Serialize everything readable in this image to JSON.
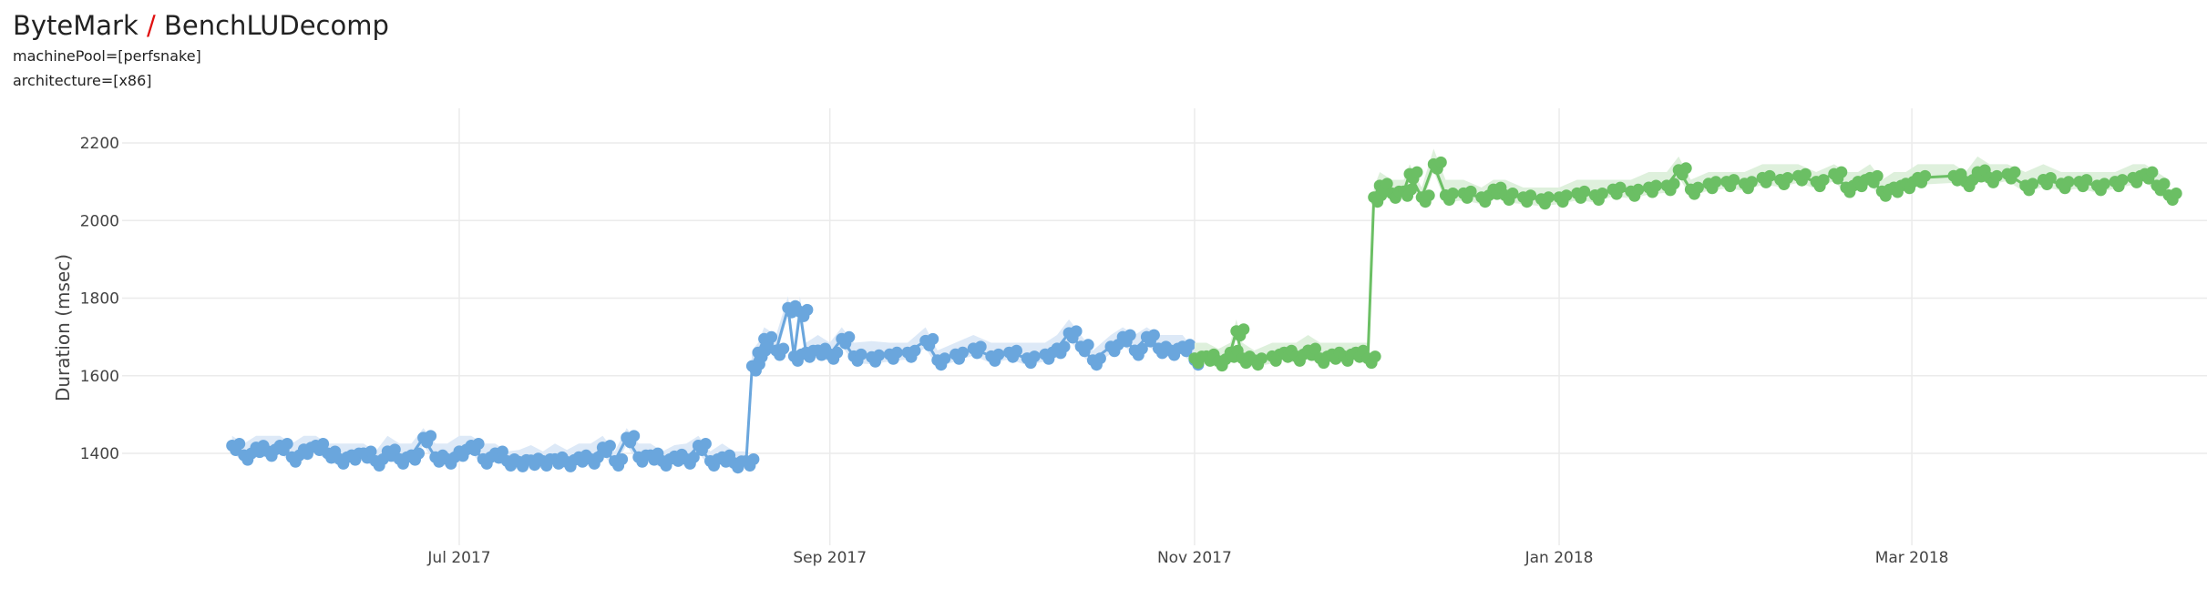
{
  "header": {
    "project": "ByteMark",
    "separator": "/",
    "benchmark": "BenchLUDecomp",
    "filters": [
      "machinePool=[perfsnake]",
      "architecture=[x86]"
    ]
  },
  "colors": {
    "series_a": "#6aa6dd",
    "series_a_band": "#dde9f7",
    "series_b": "#6bbf64",
    "series_b_band": "#def0dc",
    "grid": "#ebebeb",
    "separator": "#e01010"
  },
  "chart_data": {
    "type": "line",
    "title": "ByteMark / BenchLUDecomp",
    "xlabel": "",
    "ylabel": "Duration (msec)",
    "ylim": [
      1320,
      2270
    ],
    "yticks": [
      1400,
      1600,
      1800,
      2000,
      2200
    ],
    "xticks": [
      {
        "date": "2017-07-01",
        "label": "Jul 2017"
      },
      {
        "date": "2017-09-01",
        "label": "Sep 2017"
      },
      {
        "date": "2017-11-01",
        "label": "Nov 2017"
      },
      {
        "date": "2018-01-01",
        "label": "Jan 2018"
      },
      {
        "date": "2018-03-01",
        "label": "Mar 2018"
      }
    ],
    "grid": true,
    "legend": "none",
    "series": [
      {
        "name": "blue-series",
        "color": "#6aa6dd",
        "points": [
          [
            "2017-05-24",
            1420
          ],
          [
            "2017-05-26",
            1395
          ],
          [
            "2017-05-28",
            1415
          ],
          [
            "2017-05-30",
            1405
          ],
          [
            "2017-06-01",
            1420
          ],
          [
            "2017-06-03",
            1390
          ],
          [
            "2017-06-05",
            1410
          ],
          [
            "2017-06-07",
            1420
          ],
          [
            "2017-06-09",
            1400
          ],
          [
            "2017-06-11",
            1385
          ],
          [
            "2017-06-13",
            1395
          ],
          [
            "2017-06-15",
            1400
          ],
          [
            "2017-06-17",
            1380
          ],
          [
            "2017-06-19",
            1405
          ],
          [
            "2017-06-21",
            1385
          ],
          [
            "2017-06-23",
            1395
          ],
          [
            "2017-06-25",
            1440
          ],
          [
            "2017-06-27",
            1390
          ],
          [
            "2017-06-29",
            1385
          ],
          [
            "2017-07-01",
            1405
          ],
          [
            "2017-07-03",
            1420
          ],
          [
            "2017-07-05",
            1385
          ],
          [
            "2017-07-07",
            1400
          ],
          [
            "2017-07-09",
            1380
          ],
          [
            "2017-07-11",
            1378
          ],
          [
            "2017-07-13",
            1382
          ],
          [
            "2017-07-15",
            1380
          ],
          [
            "2017-07-17",
            1385
          ],
          [
            "2017-07-19",
            1378
          ],
          [
            "2017-07-21",
            1390
          ],
          [
            "2017-07-23",
            1385
          ],
          [
            "2017-07-25",
            1415
          ],
          [
            "2017-07-27",
            1380
          ],
          [
            "2017-07-29",
            1440
          ],
          [
            "2017-07-31",
            1390
          ],
          [
            "2017-08-02",
            1395
          ],
          [
            "2017-08-04",
            1380
          ],
          [
            "2017-08-06",
            1392
          ],
          [
            "2017-08-08",
            1385
          ],
          [
            "2017-08-10",
            1420
          ],
          [
            "2017-08-12",
            1380
          ],
          [
            "2017-08-14",
            1390
          ],
          [
            "2017-08-16",
            1375
          ],
          [
            "2017-08-18",
            1380
          ],
          [
            "2017-08-19",
            1625
          ],
          [
            "2017-08-20",
            1660
          ],
          [
            "2017-08-21",
            1695
          ],
          [
            "2017-08-23",
            1665
          ],
          [
            "2017-08-25",
            1775
          ],
          [
            "2017-08-26",
            1650
          ],
          [
            "2017-08-27",
            1765
          ],
          [
            "2017-08-28",
            1660
          ],
          [
            "2017-08-30",
            1665
          ],
          [
            "2017-09-01",
            1655
          ],
          [
            "2017-09-03",
            1695
          ],
          [
            "2017-09-05",
            1650
          ],
          [
            "2017-09-08",
            1648
          ],
          [
            "2017-09-11",
            1655
          ],
          [
            "2017-09-14",
            1660
          ],
          [
            "2017-09-17",
            1690
          ],
          [
            "2017-09-19",
            1640
          ],
          [
            "2017-09-22",
            1655
          ],
          [
            "2017-09-25",
            1670
          ],
          [
            "2017-09-28",
            1650
          ],
          [
            "2017-10-01",
            1660
          ],
          [
            "2017-10-04",
            1645
          ],
          [
            "2017-10-07",
            1655
          ],
          [
            "2017-10-09",
            1670
          ],
          [
            "2017-10-11",
            1710
          ],
          [
            "2017-10-13",
            1675
          ],
          [
            "2017-10-15",
            1640
          ],
          [
            "2017-10-18",
            1675
          ],
          [
            "2017-10-20",
            1700
          ],
          [
            "2017-10-22",
            1665
          ],
          [
            "2017-10-24",
            1700
          ],
          [
            "2017-10-26",
            1670
          ],
          [
            "2017-10-28",
            1665
          ],
          [
            "2017-10-30",
            1675
          ],
          [
            "2017-11-01",
            1640
          ]
        ]
      },
      {
        "name": "green-series",
        "color": "#6bbf64",
        "points": [
          [
            "2017-11-01",
            1645
          ],
          [
            "2017-11-03",
            1650
          ],
          [
            "2017-11-05",
            1638
          ],
          [
            "2017-11-07",
            1660
          ],
          [
            "2017-11-08",
            1715
          ],
          [
            "2017-11-09",
            1645
          ],
          [
            "2017-11-11",
            1640
          ],
          [
            "2017-11-14",
            1650
          ],
          [
            "2017-11-16",
            1660
          ],
          [
            "2017-11-18",
            1650
          ],
          [
            "2017-11-20",
            1665
          ],
          [
            "2017-11-22",
            1645
          ],
          [
            "2017-11-24",
            1655
          ],
          [
            "2017-11-26",
            1650
          ],
          [
            "2017-11-28",
            1660
          ],
          [
            "2017-11-30",
            1645
          ],
          [
            "2017-12-01",
            2060
          ],
          [
            "2017-12-02",
            2090
          ],
          [
            "2017-12-04",
            2070
          ],
          [
            "2017-12-06",
            2075
          ],
          [
            "2017-12-07",
            2120
          ],
          [
            "2017-12-09",
            2060
          ],
          [
            "2017-12-11",
            2145
          ],
          [
            "2017-12-13",
            2065
          ],
          [
            "2017-12-16",
            2070
          ],
          [
            "2017-12-19",
            2060
          ],
          [
            "2017-12-21",
            2080
          ],
          [
            "2017-12-23",
            2065
          ],
          [
            "2017-12-26",
            2060
          ],
          [
            "2017-12-29",
            2055
          ],
          [
            "2018-01-01",
            2060
          ],
          [
            "2018-01-04",
            2070
          ],
          [
            "2018-01-07",
            2065
          ],
          [
            "2018-01-10",
            2080
          ],
          [
            "2018-01-13",
            2075
          ],
          [
            "2018-01-16",
            2085
          ],
          [
            "2018-01-19",
            2090
          ],
          [
            "2018-01-21",
            2130
          ],
          [
            "2018-01-23",
            2080
          ],
          [
            "2018-01-26",
            2095
          ],
          [
            "2018-01-29",
            2100
          ],
          [
            "2018-02-01",
            2095
          ],
          [
            "2018-02-04",
            2110
          ],
          [
            "2018-02-07",
            2105
          ],
          [
            "2018-02-10",
            2115
          ],
          [
            "2018-02-13",
            2100
          ],
          [
            "2018-02-16",
            2120
          ],
          [
            "2018-02-18",
            2085
          ],
          [
            "2018-02-20",
            2100
          ],
          [
            "2018-02-22",
            2110
          ],
          [
            "2018-02-24",
            2075
          ],
          [
            "2018-02-26",
            2085
          ],
          [
            "2018-02-28",
            2095
          ],
          [
            "2018-03-02",
            2110
          ],
          [
            "2018-03-08",
            2115
          ],
          [
            "2018-03-10",
            2100
          ],
          [
            "2018-03-12",
            2125
          ],
          [
            "2018-03-14",
            2110
          ],
          [
            "2018-03-17",
            2120
          ],
          [
            "2018-03-20",
            2090
          ],
          [
            "2018-03-23",
            2105
          ],
          [
            "2018-03-26",
            2095
          ],
          [
            "2018-03-29",
            2100
          ],
          [
            "2018-04-01",
            2090
          ],
          [
            "2018-04-04",
            2100
          ],
          [
            "2018-04-07",
            2110
          ],
          [
            "2018-04-09",
            2120
          ],
          [
            "2018-04-11",
            2090
          ],
          [
            "2018-04-13",
            2065
          ]
        ]
      }
    ]
  }
}
